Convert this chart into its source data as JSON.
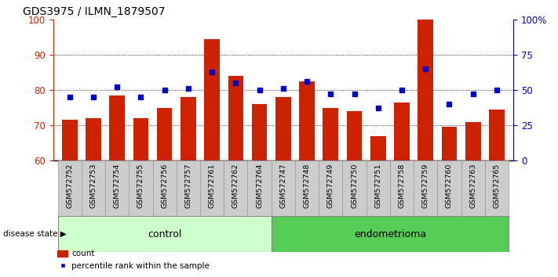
{
  "title": "GDS3975 / ILMN_1879507",
  "samples": [
    "GSM572752",
    "GSM572753",
    "GSM572754",
    "GSM572755",
    "GSM572756",
    "GSM572757",
    "GSM572761",
    "GSM572762",
    "GSM572764",
    "GSM572747",
    "GSM572748",
    "GSM572749",
    "GSM572750",
    "GSM572751",
    "GSM572758",
    "GSM572759",
    "GSM572760",
    "GSM572763",
    "GSM572765"
  ],
  "bar_values": [
    71.5,
    72.0,
    78.5,
    72.0,
    75.0,
    78.0,
    94.5,
    84.0,
    76.0,
    78.0,
    82.5,
    75.0,
    74.0,
    67.0,
    76.5,
    100.0,
    69.5,
    71.0,
    74.5
  ],
  "dot_values": [
    78.0,
    78.0,
    81.0,
    78.0,
    80.0,
    80.5,
    85.0,
    82.0,
    80.0,
    80.5,
    82.5,
    79.0,
    79.0,
    75.0,
    80.0,
    86.0,
    76.0,
    79.0,
    80.0
  ],
  "n_control": 9,
  "n_endometrioma": 10,
  "bar_color": "#cc2200",
  "dot_color": "#0000cc",
  "control_color": "#ccffcc",
  "endometrioma_color": "#55cc55",
  "y_min": 60,
  "y_max": 100,
  "y_ticks_left": [
    60,
    70,
    80,
    90,
    100
  ],
  "y_ticks_right_labels": [
    "0",
    "25",
    "50",
    "75",
    "100%"
  ],
  "grid_lines": [
    70,
    80,
    90
  ],
  "legend_count": "count",
  "legend_pct": "percentile rank within the sample",
  "disease_label": "disease state",
  "group_label_control": "control",
  "group_label_endo": "endometrioma",
  "sample_box_color": "#cccccc",
  "sample_box_edge": "#999999"
}
